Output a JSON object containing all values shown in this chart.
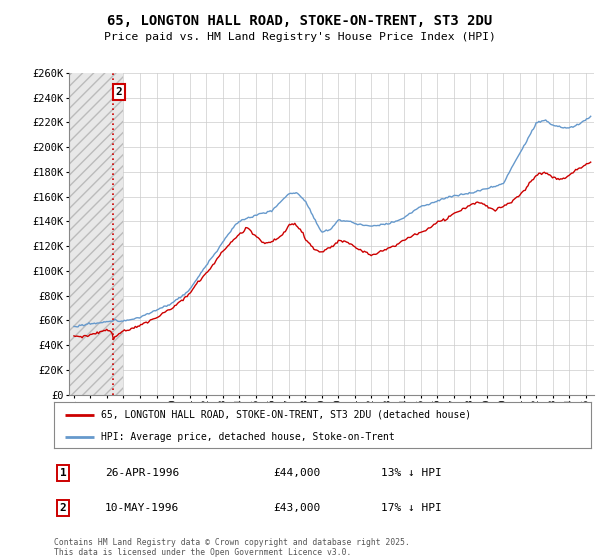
{
  "title": "65, LONGTON HALL ROAD, STOKE-ON-TRENT, ST3 2DU",
  "subtitle": "Price paid vs. HM Land Registry's House Price Index (HPI)",
  "legend_line1": "65, LONGTON HALL ROAD, STOKE-ON-TRENT, ST3 2DU (detached house)",
  "legend_line2": "HPI: Average price, detached house, Stoke-on-Trent",
  "footer": "Contains HM Land Registry data © Crown copyright and database right 2025.\nThis data is licensed under the Open Government Licence v3.0.",
  "table": [
    {
      "num": "1",
      "date": "26-APR-1996",
      "price": "£44,000",
      "change": "13% ↓ HPI"
    },
    {
      "num": "2",
      "date": "10-MAY-1996",
      "price": "£43,000",
      "change": "17% ↓ HPI"
    }
  ],
  "vline_label": "2",
  "vline_x": 1996.36,
  "price_paid_color": "#cc0000",
  "hpi_color": "#6699cc",
  "background_color": "#ffffff",
  "grid_color": "#cccccc",
  "ylim": [
    0,
    260000
  ],
  "ytick_step": 20000,
  "xlim_start": 1993.7,
  "xlim_end": 2025.5
}
